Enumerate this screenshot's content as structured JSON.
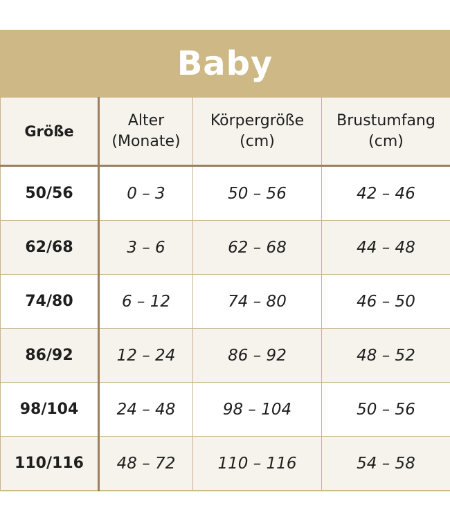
{
  "title": "Baby",
  "colors": {
    "header_band": "#CDB886",
    "alt_row": "#F6F3EC",
    "thick_divider": "#9C7F5F"
  },
  "headers": [
    {
      "line1": "Größe",
      "line2": ""
    },
    {
      "line1": "Alter",
      "line2": "(Monate)"
    },
    {
      "line1": "Körpergröße",
      "line2": "(cm)"
    },
    {
      "line1": "Brustumfang",
      "line2": "(cm)"
    }
  ],
  "rows": [
    [
      "50/56",
      "0 – 3",
      "50 – 56",
      "42 – 46"
    ],
    [
      "62/68",
      "3 – 6",
      "62 – 68",
      "44 – 48"
    ],
    [
      "74/80",
      "6 – 12",
      "74 – 80",
      "46 – 50"
    ],
    [
      "86/92",
      "12 – 24",
      "86 – 92",
      "48 – 52"
    ],
    [
      "98/104",
      "24 – 48",
      "98 – 104",
      "50 – 56"
    ],
    [
      "110/116",
      "48 – 72",
      "110 – 116",
      "54 – 58"
    ]
  ]
}
